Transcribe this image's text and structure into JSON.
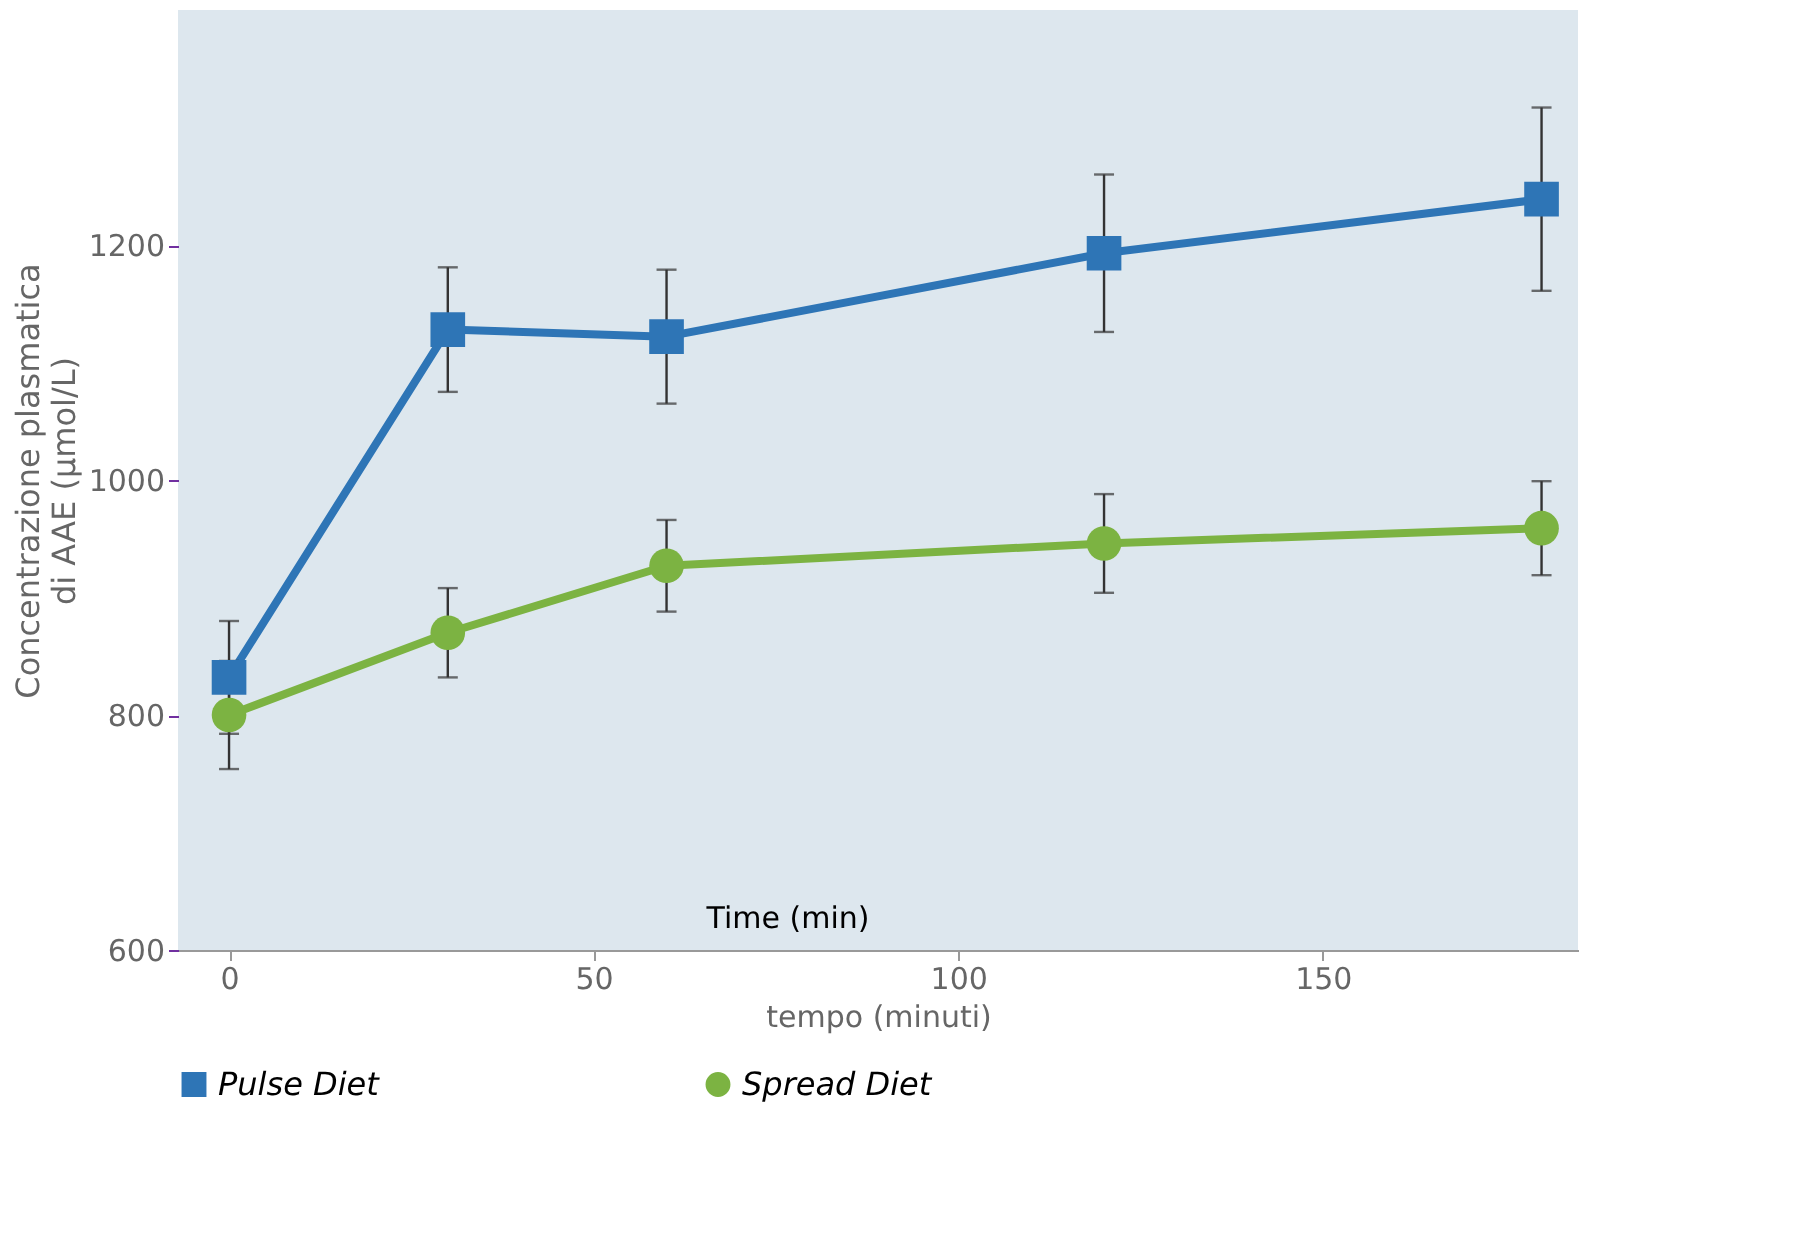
{
  "chart_data": {
    "type": "line",
    "xlabel": "tempo (minuti)",
    "ylabel": "Concentrazione plasmatica di AAE (μmol/L)",
    "x": [
      0,
      30,
      60,
      120,
      180
    ],
    "series": [
      {
        "name": "Pulse Diet",
        "color": "#2e75b6",
        "marker": "square",
        "values": [
          832,
          1128,
          1122,
          1193,
          1239
        ],
        "errors": [
          48,
          53,
          57,
          67,
          78
        ]
      },
      {
        "name": "Spread Diet",
        "color": "#7cb342",
        "marker": "circle",
        "values": [
          800,
          870,
          927,
          946,
          959
        ],
        "errors": [
          46,
          38,
          39,
          42,
          40
        ]
      }
    ],
    "xlim": [
      -7,
      185
    ],
    "xticks": [
      0,
      50,
      100,
      150
    ],
    "ylim": [
      600,
      1400
    ],
    "yticks": [
      600,
      800,
      1000,
      1200
    ],
    "grid": false,
    "legend": "bottom",
    "annotations": [
      "Time (min)"
    ]
  }
}
